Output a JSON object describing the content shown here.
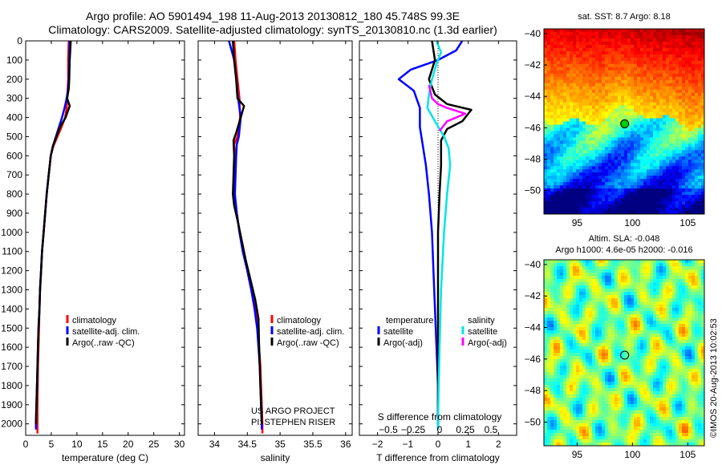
{
  "title_line1": "Argo profile: AO 5901494_198 11-Aug-2013 20130812_180 45.748S 99.3E",
  "title_line2": "Climatology: CARS2009. Satellite-adjusted climatology: synTS_20130810.nc (1.3d earlier)",
  "project_line1": "US ARGO PROJECT",
  "project_line2": "PI: STEPHEN RISER",
  "timestamp": "©IMOS 20-Aug-2013 10:02:53",
  "colors": {
    "climatology": "#ff0000",
    "satellite": "#0000ff",
    "argo": "#000000",
    "sal_satellite": "#00e5e5",
    "sal_argo": "#ff00ff"
  },
  "chart_data": [
    {
      "type": "line",
      "name": "temperature-profile",
      "xlabel": "temperature (deg C)",
      "ylabel": "",
      "xlim": [
        0,
        31
      ],
      "ylim": [
        2060,
        0
      ],
      "xticks": [
        0,
        5,
        10,
        15,
        20,
        25,
        30
      ],
      "yticks": [
        0,
        100,
        200,
        300,
        400,
        500,
        600,
        700,
        800,
        900,
        1000,
        1100,
        1200,
        1300,
        1400,
        1500,
        1600,
        1700,
        1800,
        1900,
        2000
      ],
      "legend": {
        "position": "lower-center",
        "entries": [
          "climatology",
          "satellite-adj. clim.",
          "Argo(..raw -QC)"
        ]
      },
      "series": [
        {
          "name": "climatology",
          "color": "#ff0000",
          "points": [
            [
              8.4,
              0
            ],
            [
              8.3,
              100
            ],
            [
              8.3,
              200
            ],
            [
              8.2,
              250
            ],
            [
              8.1,
              300
            ],
            [
              8.0,
              350
            ],
            [
              7.7,
              400
            ],
            [
              7.0,
              450
            ],
            [
              6.2,
              500
            ],
            [
              5.4,
              550
            ],
            [
              4.9,
              600
            ],
            [
              4.5,
              700
            ],
            [
              4.1,
              800
            ],
            [
              3.8,
              900
            ],
            [
              3.5,
              1000
            ],
            [
              3.2,
              1100
            ],
            [
              3.0,
              1200
            ],
            [
              2.8,
              1300
            ],
            [
              2.7,
              1400
            ],
            [
              2.6,
              1500
            ],
            [
              2.5,
              1600
            ],
            [
              2.4,
              1700
            ],
            [
              2.35,
              1800
            ],
            [
              2.3,
              1900
            ],
            [
              2.3,
              2000
            ],
            [
              2.3,
              2050
            ]
          ]
        },
        {
          "name": "satellite-adj. clim.",
          "color": "#0000ff",
          "points": [
            [
              8.6,
              0
            ],
            [
              8.5,
              100
            ],
            [
              8.4,
              200
            ],
            [
              8.3,
              250
            ],
            [
              8.0,
              300
            ],
            [
              7.6,
              350
            ],
            [
              7.1,
              400
            ],
            [
              6.5,
              450
            ],
            [
              5.9,
              500
            ],
            [
              5.3,
              550
            ],
            [
              4.9,
              600
            ],
            [
              4.5,
              700
            ],
            [
              4.1,
              800
            ],
            [
              3.8,
              900
            ],
            [
              3.5,
              1000
            ],
            [
              3.2,
              1100
            ],
            [
              3.0,
              1200
            ],
            [
              2.8,
              1300
            ],
            [
              2.7,
              1400
            ],
            [
              2.5,
              1500
            ],
            [
              2.4,
              1600
            ],
            [
              2.3,
              1700
            ],
            [
              2.2,
              1800
            ],
            [
              2.1,
              1900
            ],
            [
              2.0,
              2000
            ],
            [
              2.0,
              2030
            ]
          ]
        },
        {
          "name": "Argo(..raw -QC)",
          "color": "#000000",
          "points": [
            [
              8.8,
              0
            ],
            [
              8.6,
              100
            ],
            [
              8.5,
              200
            ],
            [
              8.4,
              250
            ],
            [
              8.1,
              300
            ],
            [
              8.6,
              340
            ],
            [
              7.8,
              400
            ],
            [
              6.7,
              450
            ],
            [
              6.0,
              500
            ],
            [
              5.3,
              550
            ],
            [
              4.9,
              600
            ],
            [
              4.5,
              700
            ],
            [
              4.1,
              800
            ],
            [
              3.8,
              900
            ],
            [
              3.5,
              1000
            ],
            [
              3.2,
              1100
            ],
            [
              3.0,
              1200
            ],
            [
              2.8,
              1300
            ],
            [
              2.7,
              1400
            ],
            [
              2.5,
              1500
            ],
            [
              2.4,
              1600
            ],
            [
              2.3,
              1700
            ],
            [
              2.2,
              1800
            ],
            [
              2.1,
              1900
            ],
            [
              2.0,
              2000
            ]
          ]
        }
      ]
    },
    {
      "type": "line",
      "name": "salinity-profile",
      "xlabel": "salinity",
      "xlim": [
        33.75,
        36.1
      ],
      "ylim": [
        2060,
        0
      ],
      "xticks": [
        34,
        34.5,
        35,
        35.5,
        36
      ],
      "legend": {
        "position": "lower-right",
        "entries": [
          "climatology",
          "satellite-adj. clim.",
          "Argo(..raw -QC)"
        ]
      },
      "series": [
        {
          "name": "climatology",
          "color": "#ff0000",
          "points": [
            [
              34.3,
              0
            ],
            [
              34.32,
              100
            ],
            [
              34.35,
              200
            ],
            [
              34.38,
              300
            ],
            [
              34.39,
              400
            ],
            [
              34.35,
              500
            ],
            [
              34.3,
              540
            ],
            [
              34.31,
              600
            ],
            [
              34.3,
              700
            ],
            [
              34.29,
              760
            ],
            [
              34.3,
              800
            ],
            [
              34.34,
              900
            ],
            [
              34.38,
              1000
            ],
            [
              34.44,
              1100
            ],
            [
              34.5,
              1200
            ],
            [
              34.56,
              1300
            ],
            [
              34.62,
              1400
            ],
            [
              34.66,
              1500
            ],
            [
              34.68,
              1600
            ],
            [
              34.7,
              1700
            ],
            [
              34.71,
              1800
            ],
            [
              34.72,
              1900
            ],
            [
              34.73,
              2000
            ],
            [
              34.73,
              2050
            ]
          ]
        },
        {
          "name": "satellite-adj. clim.",
          "color": "#0000ff",
          "points": [
            [
              34.22,
              0
            ],
            [
              34.26,
              50
            ],
            [
              34.3,
              100
            ],
            [
              34.33,
              200
            ],
            [
              34.36,
              300
            ],
            [
              34.4,
              400
            ],
            [
              34.37,
              500
            ],
            [
              34.34,
              540
            ],
            [
              34.33,
              600
            ],
            [
              34.32,
              700
            ],
            [
              34.31,
              800
            ],
            [
              34.34,
              900
            ],
            [
              34.38,
              1000
            ],
            [
              34.43,
              1100
            ],
            [
              34.5,
              1200
            ],
            [
              34.56,
              1300
            ],
            [
              34.61,
              1400
            ],
            [
              34.65,
              1500
            ],
            [
              34.67,
              1600
            ],
            [
              34.69,
              1700
            ],
            [
              34.7,
              1800
            ],
            [
              34.71,
              1900
            ],
            [
              34.72,
              2000
            ],
            [
              34.72,
              2030
            ]
          ]
        },
        {
          "name": "Argo(..raw -QC)",
          "color": "#000000",
          "points": [
            [
              34.28,
              0
            ],
            [
              34.3,
              100
            ],
            [
              34.33,
              200
            ],
            [
              34.35,
              300
            ],
            [
              34.45,
              340
            ],
            [
              34.4,
              400
            ],
            [
              34.33,
              480
            ],
            [
              34.29,
              520
            ],
            [
              34.3,
              600
            ],
            [
              34.29,
              700
            ],
            [
              34.28,
              800
            ],
            [
              34.3,
              860
            ],
            [
              34.36,
              950
            ],
            [
              34.42,
              1050
            ],
            [
              34.48,
              1150
            ],
            [
              34.55,
              1250
            ],
            [
              34.62,
              1350
            ],
            [
              34.67,
              1450
            ],
            [
              34.68,
              1600
            ],
            [
              34.69,
              1700
            ],
            [
              34.7,
              1800
            ],
            [
              34.71,
              1900
            ],
            [
              34.72,
              2000
            ]
          ]
        }
      ]
    },
    {
      "type": "line",
      "name": "difference-profile",
      "xlabel": "T difference from climatology",
      "xlabel_top": "S difference from climatology",
      "xlim": [
        -2.6,
        2.6
      ],
      "ylim": [
        2060,
        0
      ],
      "xticks": [
        -2,
        -1,
        0,
        1,
        2
      ],
      "xticks_s": [
        "-0.5",
        "-0.25",
        "0",
        "0.25",
        "0.5"
      ],
      "legend_temperature": {
        "title": "temperature",
        "entries": [
          "satellite",
          "Argo(-adj)"
        ]
      },
      "legend_salinity": {
        "title": "salinity",
        "entries": [
          "satellite",
          "Argo(-adj)"
        ]
      },
      "series": [
        {
          "name": "temperature satellite",
          "color": "#0000ff",
          "points": [
            [
              0.8,
              0
            ],
            [
              0.6,
              50
            ],
            [
              0.0,
              100
            ],
            [
              -0.9,
              150
            ],
            [
              -1.3,
              200
            ],
            [
              -0.8,
              260
            ],
            [
              -0.6,
              350
            ],
            [
              -0.6,
              450
            ],
            [
              -0.5,
              550
            ],
            [
              -0.4,
              650
            ],
            [
              -0.3,
              800
            ],
            [
              -0.2,
              1000
            ],
            [
              -0.15,
              1200
            ],
            [
              -0.1,
              1400
            ],
            [
              -0.05,
              1600
            ],
            [
              0.0,
              1800
            ],
            [
              0.0,
              2000
            ],
            [
              0.0,
              2030
            ]
          ]
        },
        {
          "name": "temperature Argo(-adj)",
          "color": "#000000",
          "points": [
            [
              -0.2,
              0
            ],
            [
              -0.1,
              100
            ],
            [
              -0.3,
              200
            ],
            [
              -0.1,
              280
            ],
            [
              0.3,
              330
            ],
            [
              1.1,
              360
            ],
            [
              0.8,
              420
            ],
            [
              0.3,
              460
            ],
            [
              0.1,
              520
            ],
            [
              0.1,
              650
            ],
            [
              0.05,
              800
            ],
            [
              0.0,
              1000
            ],
            [
              0.0,
              1300
            ],
            [
              0.0,
              1600
            ],
            [
              0.0,
              2000
            ]
          ]
        },
        {
          "name": "salinity satellite",
          "color": "#00e5e5",
          "points": [
            [
              -0.05,
              0
            ],
            [
              0.1,
              60
            ],
            [
              -0.05,
              120
            ],
            [
              -0.2,
              200
            ],
            [
              -0.3,
              280
            ],
            [
              -0.35,
              350
            ],
            [
              -0.1,
              420
            ],
            [
              0.2,
              500
            ],
            [
              0.35,
              560
            ],
            [
              0.4,
              650
            ],
            [
              0.3,
              800
            ],
            [
              0.2,
              1000
            ],
            [
              0.1,
              1300
            ],
            [
              0.05,
              1600
            ],
            [
              0.02,
              1800
            ],
            [
              0.0,
              2000
            ],
            [
              0.0,
              2030
            ]
          ]
        },
        {
          "name": "salinity Argo(-adj)",
          "color": "#ff00ff",
          "points": [
            [
              -0.3,
              230
            ],
            [
              -0.2,
              300
            ],
            [
              0.0,
              330
            ],
            [
              0.3,
              350
            ],
            [
              0.9,
              380
            ],
            [
              0.3,
              420
            ],
            [
              0.05,
              470
            ]
          ]
        }
      ]
    },
    {
      "type": "heatmap",
      "name": "sst-map",
      "title": "sat. SST: 8.7 Argo: 8.18",
      "xlim": [
        92,
        106.5
      ],
      "ylim": [
        -51.5,
        -39.7
      ],
      "xticks": [
        95,
        100,
        105
      ],
      "yticks": [
        -40,
        -42,
        -44,
        -46,
        -48,
        -50
      ],
      "marker": {
        "lon": 99.3,
        "lat": -45.75
      }
    },
    {
      "type": "heatmap",
      "name": "sla-map",
      "title": "Altim. SLA: -0.048",
      "subtitle": "Argo h1000: 4.6e-05 h2000: -0.016",
      "xlim": [
        92,
        106.5
      ],
      "ylim": [
        -51.5,
        -39.7
      ],
      "xticks": [
        95,
        100,
        105
      ],
      "yticks": [
        -40,
        -42,
        -44,
        -46,
        -48,
        -50
      ],
      "marker": {
        "lon": 99.3,
        "lat": -45.75
      }
    }
  ]
}
